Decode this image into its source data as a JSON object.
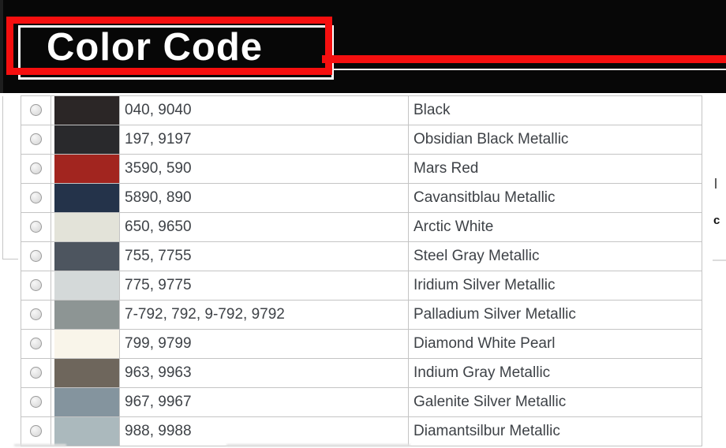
{
  "header": {
    "title": "Color Code"
  },
  "colors": {
    "accent_red": "#f50f0f",
    "banner_background": "#070707",
    "table_border": "#c4c4c4",
    "text": "#3e4247"
  },
  "edge_fragments": {
    "letter": "c"
  },
  "table": {
    "rows": [
      {
        "codes": "040, 9040",
        "name": "Black",
        "swatch": "#2b2626"
      },
      {
        "codes": "197, 9197",
        "name": "Obsidian Black Metallic",
        "swatch": "#29292c"
      },
      {
        "codes": "3590, 590",
        "name": "Mars Red",
        "swatch": "#a2251f"
      },
      {
        "codes": "5890, 890",
        "name": "Cavansitblau Metallic",
        "swatch": "#24334a"
      },
      {
        "codes": "650, 9650",
        "name": "Arctic White",
        "swatch": "#e3e3d9"
      },
      {
        "codes": "755, 7755",
        "name": "Steel Gray Metallic",
        "swatch": "#4d555f"
      },
      {
        "codes": "775, 9775",
        "name": "Iridium Silver Metallic",
        "swatch": "#d4d9d9"
      },
      {
        "codes": "7-792, 792, 9-792, 9792",
        "name": "Palladium Silver Metallic",
        "swatch": "#8d9594"
      },
      {
        "codes": "799, 9799",
        "name": "Diamond White Pearl",
        "swatch": "#f9f5ea"
      },
      {
        "codes": "963, 9963",
        "name": "Indium Gray Metallic",
        "swatch": "#6e665c"
      },
      {
        "codes": "967, 9967",
        "name": "Galenite Silver Metallic",
        "swatch": "#84949e"
      },
      {
        "codes": "988, 9988",
        "name": "Diamantsilbur Metallic",
        "swatch": "#abb9bd"
      }
    ]
  }
}
